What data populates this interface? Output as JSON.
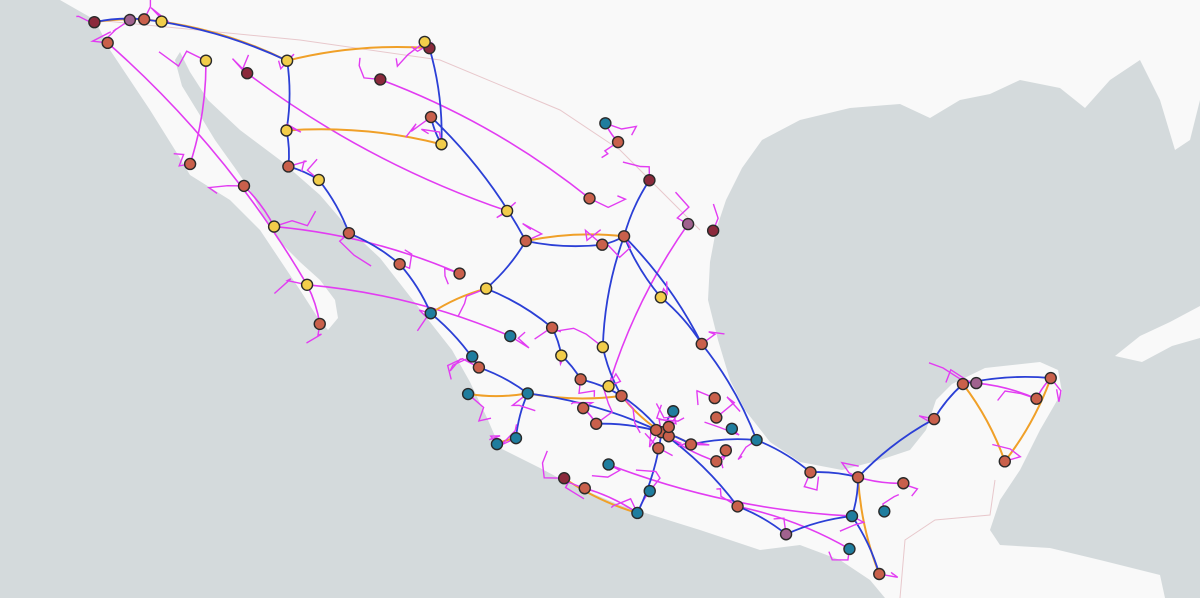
{
  "map": {
    "colors": {
      "water": "#d4dadc",
      "land": "#f9f9f9",
      "border": "#e8c8cc",
      "road_federal": "#2b3fd6",
      "road_toll": "#f0a028",
      "road_secondary": "#e23cf2"
    },
    "point_categories": {
      "salmon": "#c9604b",
      "yellow": "#f2cd4a",
      "teal": "#1f7d9e",
      "darkred": "#8b2a3c",
      "purple": "#a0628e"
    },
    "points": [
      {
        "lat": 32.53,
        "lon": -117.02,
        "cat": "darkred"
      },
      {
        "lat": 32.6,
        "lon": -115.9,
        "cat": "purple"
      },
      {
        "lat": 32.62,
        "lon": -115.45,
        "cat": "salmon"
      },
      {
        "lat": 32.55,
        "lon": -114.9,
        "cat": "yellow"
      },
      {
        "lat": 31.87,
        "lon": -116.6,
        "cat": "salmon"
      },
      {
        "lat": 31.3,
        "lon": -110.94,
        "cat": "yellow"
      },
      {
        "lat": 31.7,
        "lon": -106.45,
        "cat": "darkred"
      },
      {
        "lat": 31.9,
        "lon": -106.6,
        "cat": "yellow"
      },
      {
        "lat": 29.07,
        "lon": -110.96,
        "cat": "yellow"
      },
      {
        "lat": 28.63,
        "lon": -106.07,
        "cat": "yellow"
      },
      {
        "lat": 27.92,
        "lon": -110.9,
        "cat": "salmon"
      },
      {
        "lat": 27.49,
        "lon": -109.94,
        "cat": "yellow"
      },
      {
        "lat": 25.79,
        "lon": -108.99,
        "cat": "salmon"
      },
      {
        "lat": 24.8,
        "lon": -107.39,
        "cat": "salmon"
      },
      {
        "lat": 23.23,
        "lon": -106.41,
        "cat": "teal"
      },
      {
        "lat": 24.14,
        "lon": -110.31,
        "cat": "yellow"
      },
      {
        "lat": 22.89,
        "lon": -109.91,
        "cat": "salmon"
      },
      {
        "lat": 25.54,
        "lon": -103.41,
        "cat": "salmon"
      },
      {
        "lat": 25.69,
        "lon": -100.31,
        "cat": "salmon"
      },
      {
        "lat": 25.42,
        "lon": -101.0,
        "cat": "salmon"
      },
      {
        "lat": 27.48,
        "lon": -99.51,
        "cat": "darkred"
      },
      {
        "lat": 26.08,
        "lon": -98.29,
        "cat": "purple"
      },
      {
        "lat": 25.87,
        "lon": -97.5,
        "cat": "darkred"
      },
      {
        "lat": 24.02,
        "lon": -104.66,
        "cat": "yellow"
      },
      {
        "lat": 22.77,
        "lon": -102.58,
        "cat": "salmon"
      },
      {
        "lat": 22.15,
        "lon": -100.98,
        "cat": "yellow"
      },
      {
        "lat": 21.88,
        "lon": -102.29,
        "cat": "yellow"
      },
      {
        "lat": 20.67,
        "lon": -103.35,
        "cat": "teal"
      },
      {
        "lat": 21.12,
        "lon": -101.68,
        "cat": "salmon"
      },
      {
        "lat": 20.59,
        "lon": -100.39,
        "cat": "salmon"
      },
      {
        "lat": 19.43,
        "lon": -99.13,
        "cat": "salmon"
      },
      {
        "lat": 19.5,
        "lon": -99.3,
        "cat": "salmon"
      },
      {
        "lat": 19.3,
        "lon": -98.9,
        "cat": "salmon"
      },
      {
        "lat": 19.6,
        "lon": -98.9,
        "cat": "salmon"
      },
      {
        "lat": 19.04,
        "lon": -98.2,
        "cat": "salmon"
      },
      {
        "lat": 19.18,
        "lon": -96.13,
        "cat": "teal"
      },
      {
        "lat": 22.25,
        "lon": -97.86,
        "cat": "salmon"
      },
      {
        "lat": 17.06,
        "lon": -96.73,
        "cat": "salmon"
      },
      {
        "lat": 16.85,
        "lon": -99.89,
        "cat": "teal"
      },
      {
        "lat": 19.7,
        "lon": -101.19,
        "cat": "salmon"
      },
      {
        "lat": 19.24,
        "lon": -103.72,
        "cat": "teal"
      },
      {
        "lat": 19.05,
        "lon": -104.32,
        "cat": "teal"
      },
      {
        "lat": 20.65,
        "lon": -105.23,
        "cat": "teal"
      },
      {
        "lat": 21.5,
        "lon": -104.89,
        "cat": "salmon"
      },
      {
        "lat": 17.99,
        "lon": -92.93,
        "cat": "salmon"
      },
      {
        "lat": 16.75,
        "lon": -93.12,
        "cat": "teal"
      },
      {
        "lat": 14.9,
        "lon": -92.26,
        "cat": "salmon"
      },
      {
        "lat": 19.85,
        "lon": -90.53,
        "cat": "salmon"
      },
      {
        "lat": 20.97,
        "lon": -89.62,
        "cat": "salmon"
      },
      {
        "lat": 21.16,
        "lon": -86.85,
        "cat": "salmon"
      },
      {
        "lat": 18.5,
        "lon": -88.3,
        "cat": "salmon"
      },
      {
        "lat": 18.15,
        "lon": -94.43,
        "cat": "salmon"
      },
      {
        "lat": 16.17,
        "lon": -95.2,
        "cat": "purple"
      },
      {
        "lat": 23.74,
        "lon": -99.15,
        "cat": "yellow"
      },
      {
        "lat": 17.96,
        "lon": -102.2,
        "cat": "darkred"
      },
      {
        "lat": 17.64,
        "lon": -101.55,
        "cat": "salmon"
      },
      {
        "lat": 18.92,
        "lon": -99.23,
        "cat": "salmon"
      },
      {
        "lat": 20.1,
        "lon": -98.76,
        "cat": "teal"
      },
      {
        "lat": 18.85,
        "lon": -97.1,
        "cat": "salmon"
      },
      {
        "lat": 19.54,
        "lon": -96.91,
        "cat": "teal"
      },
      {
        "lat": 20.52,
        "lon": -97.45,
        "cat": "salmon"
      },
      {
        "lat": 21.0,
        "lon": -89.2,
        "cat": "purple"
      },
      {
        "lat": 20.5,
        "lon": -87.3,
        "cat": "salmon"
      },
      {
        "lat": 17.8,
        "lon": -91.5,
        "cat": "salmon"
      },
      {
        "lat": 16.9,
        "lon": -92.1,
        "cat": "teal"
      },
      {
        "lat": 15.7,
        "lon": -93.2,
        "cat": "teal"
      },
      {
        "lat": 18.4,
        "lon": -100.8,
        "cat": "teal"
      },
      {
        "lat": 17.55,
        "lon": -99.5,
        "cat": "teal"
      },
      {
        "lat": 20.2,
        "lon": -101.6,
        "cat": "salmon"
      },
      {
        "lat": 21.85,
        "lon": -105.1,
        "cat": "teal"
      },
      {
        "lat": 26.9,
        "lon": -101.4,
        "cat": "salmon"
      },
      {
        "lat": 29.3,
        "lon": -100.9,
        "cat": "teal"
      },
      {
        "lat": 28.7,
        "lon": -100.5,
        "cat": "salmon"
      },
      {
        "lat": 30.7,
        "lon": -108.0,
        "cat": "darkred"
      },
      {
        "lat": 29.5,
        "lon": -106.4,
        "cat": "salmon"
      },
      {
        "lat": 26.5,
        "lon": -104.0,
        "cat": "yellow"
      },
      {
        "lat": 30.9,
        "lon": -112.2,
        "cat": "darkred"
      },
      {
        "lat": 31.3,
        "lon": -113.5,
        "cat": "yellow"
      },
      {
        "lat": 28.0,
        "lon": -114.0,
        "cat": "salmon"
      },
      {
        "lat": 27.3,
        "lon": -112.3,
        "cat": "salmon"
      },
      {
        "lat": 26.0,
        "lon": -111.35,
        "cat": "yellow"
      },
      {
        "lat": 24.5,
        "lon": -105.5,
        "cat": "salmon"
      },
      {
        "lat": 22.5,
        "lon": -103.9,
        "cat": "teal"
      },
      {
        "lat": 20.9,
        "lon": -100.8,
        "cat": "yellow"
      },
      {
        "lat": 19.9,
        "lon": -97.4,
        "cat": "salmon"
      },
      {
        "lat": 18.5,
        "lon": -97.4,
        "cat": "salmon"
      }
    ]
  }
}
